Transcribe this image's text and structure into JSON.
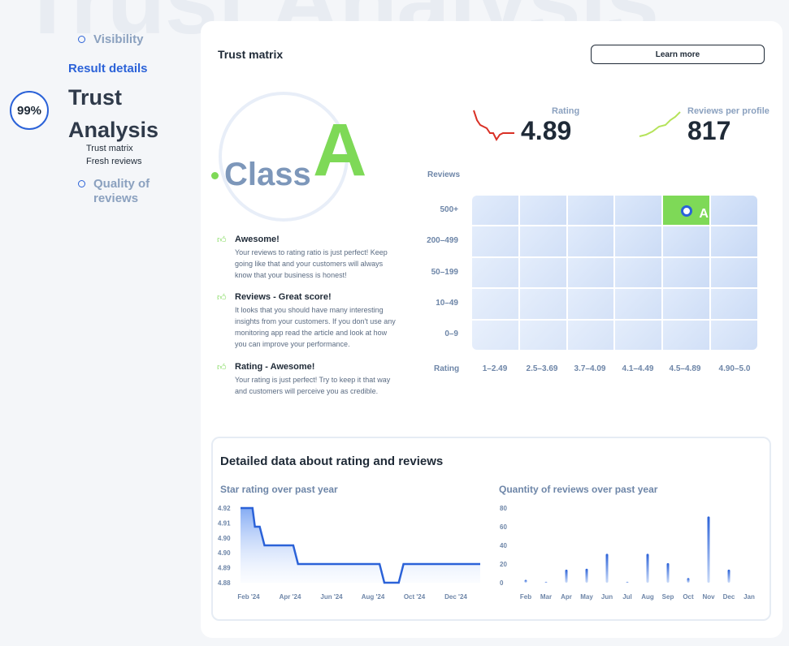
{
  "background_title": "Trust Analysis",
  "nav": {
    "visibility": "Visibility",
    "result_details": "Result details",
    "title_line1": "Trust",
    "title_line2": "Analysis",
    "sub_items": [
      "Trust matrix",
      "Fresh reviews"
    ],
    "quality_line1": "Quality of",
    "quality_line2": "reviews",
    "progress_label": "99%",
    "accent": "#2b62d8"
  },
  "card": {
    "title": "Trust matrix",
    "learn_more": "Learn more",
    "class_word": "Class",
    "class_letter": "A",
    "rating_label": "Rating",
    "rating_value": "4.89",
    "reviews_label": "Reviews per profile",
    "reviews_value": "817",
    "feedback": [
      {
        "title": "Awesome!",
        "text": "Your reviews to rating ratio is just perfect! Keep going like that and your customers will always know that your business is honest!"
      },
      {
        "title": "Reviews - Great score!",
        "text": "It looks that you should have many interesting insights from your customers. If you don't use any monitoring app read the article and look at how you can improve your performance."
      },
      {
        "title": "Rating - Awesome!",
        "text": "Your rating is just perfect! Try to keep it that way and customers will perceive you as credible."
      }
    ],
    "matrix": {
      "y_title": "Reviews",
      "x_title": "Rating",
      "rows": [
        "500+",
        "200–499",
        "50–199",
        "10–49",
        "0–9"
      ],
      "cols": [
        "1–2.49",
        "2.5–3.69",
        "3.7–4.09",
        "4.1–4.49",
        "4.5–4.89",
        "4.90–5.0"
      ],
      "active_row": 0,
      "active_col": 4,
      "active_label": "A"
    },
    "colors": {
      "green": "#7ed957",
      "red": "#d93025",
      "blue": "#2b62d8"
    }
  },
  "details": {
    "title": "Detailed data about rating and reviews",
    "rating_chart_title": "Star rating over past year",
    "reviews_chart_title": "Quantity of reviews over past year"
  },
  "chart_data": [
    {
      "type": "area",
      "title": "Star rating over past year",
      "y_ticks": [
        "4.92",
        "4.91",
        "4.90",
        "4.90",
        "4.89",
        "4.88"
      ],
      "x_ticks": [
        "Feb '24",
        "Apr '24",
        "Jun '24",
        "Aug '24",
        "Oct '24",
        "Dec '24"
      ],
      "points": [
        {
          "x": 0.0,
          "y": 4.92
        },
        {
          "x": 0.05,
          "y": 4.92
        },
        {
          "x": 0.06,
          "y": 4.91
        },
        {
          "x": 0.08,
          "y": 4.91
        },
        {
          "x": 0.1,
          "y": 4.9
        },
        {
          "x": 0.22,
          "y": 4.9
        },
        {
          "x": 0.24,
          "y": 4.89
        },
        {
          "x": 0.58,
          "y": 4.89
        },
        {
          "x": 0.6,
          "y": 4.88
        },
        {
          "x": 0.66,
          "y": 4.88
        },
        {
          "x": 0.68,
          "y": 4.89
        },
        {
          "x": 1.0,
          "y": 4.89
        }
      ],
      "ylim": [
        4.88,
        4.92
      ]
    },
    {
      "type": "bar",
      "title": "Quantity of reviews over past year",
      "categories": [
        "Feb",
        "Mar",
        "Apr",
        "May",
        "Jun",
        "Jul",
        "Aug",
        "Sep",
        "Oct",
        "Nov",
        "Dec",
        "Jan"
      ],
      "values": [
        3,
        1,
        14,
        15,
        31,
        1,
        31,
        21,
        5,
        71,
        14,
        0
      ],
      "y_ticks": [
        "80",
        "60",
        "40",
        "20",
        "0"
      ],
      "ylim": [
        0,
        80
      ]
    }
  ]
}
